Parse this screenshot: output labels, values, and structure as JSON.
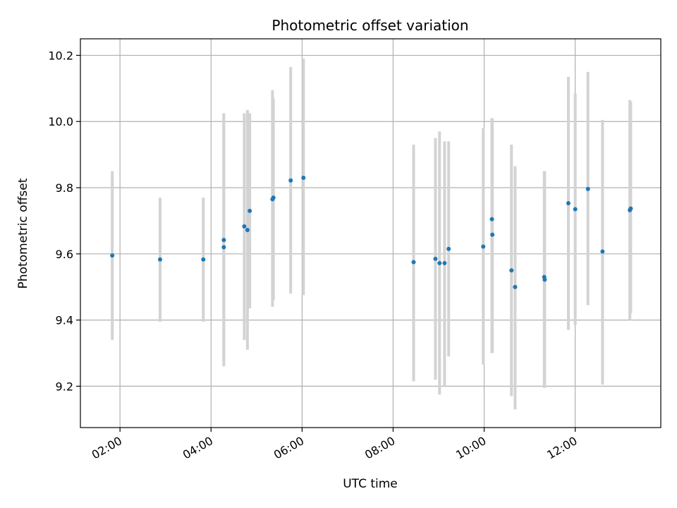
{
  "chart_data": {
    "type": "scatter",
    "title": "Photometric offset variation",
    "xlabel": "UTC time",
    "ylabel": "Photometric offset",
    "grid": true,
    "x_unit": "hours UTC",
    "xlim": [
      1.13,
      13.88
    ],
    "ylim": [
      9.075,
      10.25
    ],
    "x_ticks": [
      {
        "value": 2,
        "label": "02:00"
      },
      {
        "value": 4,
        "label": "04:00"
      },
      {
        "value": 6,
        "label": "06:00"
      },
      {
        "value": 8,
        "label": "08:00"
      },
      {
        "value": 10,
        "label": "10:00"
      },
      {
        "value": 12,
        "label": "12:00"
      }
    ],
    "y_ticks": [
      {
        "value": 9.2,
        "label": "9.2"
      },
      {
        "value": 9.4,
        "label": "9.4"
      },
      {
        "value": 9.6,
        "label": "9.6"
      },
      {
        "value": 9.8,
        "label": "9.8"
      },
      {
        "value": 10.0,
        "label": "10.0"
      },
      {
        "value": 10.2,
        "label": "10.2"
      }
    ],
    "colors": {
      "marker": "#1f77b4",
      "errorbar": "#d3d3d3",
      "grid": "#b0b0b0"
    },
    "points": [
      {
        "x": 1.83,
        "y": 9.595,
        "lo": 9.34,
        "hi": 9.85
      },
      {
        "x": 2.88,
        "y": 9.583,
        "lo": 9.395,
        "hi": 9.77
      },
      {
        "x": 3.83,
        "y": 9.583,
        "lo": 9.395,
        "hi": 9.77
      },
      {
        "x": 4.28,
        "y": 9.642,
        "lo": 9.26,
        "hi": 10.025
      },
      {
        "x": 4.28,
        "y": 9.62,
        "lo": 9.27,
        "hi": 10.0
      },
      {
        "x": 4.73,
        "y": 9.683,
        "lo": 9.34,
        "hi": 10.025
      },
      {
        "x": 4.8,
        "y": 9.672,
        "lo": 9.31,
        "hi": 10.035
      },
      {
        "x": 4.85,
        "y": 9.73,
        "lo": 9.435,
        "hi": 10.025
      },
      {
        "x": 5.35,
        "y": 9.765,
        "lo": 9.44,
        "hi": 10.095
      },
      {
        "x": 5.37,
        "y": 9.77,
        "lo": 9.46,
        "hi": 10.07
      },
      {
        "x": 5.75,
        "y": 9.822,
        "lo": 9.48,
        "hi": 10.165
      },
      {
        "x": 6.03,
        "y": 9.83,
        "lo": 9.475,
        "hi": 10.19
      },
      {
        "x": 8.45,
        "y": 9.575,
        "lo": 9.215,
        "hi": 9.93
      },
      {
        "x": 8.93,
        "y": 9.585,
        "lo": 9.22,
        "hi": 9.95
      },
      {
        "x": 9.02,
        "y": 9.572,
        "lo": 9.175,
        "hi": 9.97
      },
      {
        "x": 9.13,
        "y": 9.572,
        "lo": 9.2,
        "hi": 9.94
      },
      {
        "x": 9.22,
        "y": 9.615,
        "lo": 9.29,
        "hi": 9.94
      },
      {
        "x": 9.98,
        "y": 9.622,
        "lo": 9.265,
        "hi": 9.98
      },
      {
        "x": 10.17,
        "y": 9.705,
        "lo": 9.3,
        "hi": 10.01
      },
      {
        "x": 10.18,
        "y": 9.658,
        "lo": 9.3,
        "hi": 10.01
      },
      {
        "x": 10.6,
        "y": 9.55,
        "lo": 9.17,
        "hi": 9.93
      },
      {
        "x": 10.68,
        "y": 9.5,
        "lo": 9.13,
        "hi": 9.865
      },
      {
        "x": 11.32,
        "y": 9.53,
        "lo": 9.195,
        "hi": 9.85
      },
      {
        "x": 11.33,
        "y": 9.522,
        "lo": 9.195,
        "hi": 9.85
      },
      {
        "x": 11.85,
        "y": 9.753,
        "lo": 9.37,
        "hi": 10.135
      },
      {
        "x": 12.0,
        "y": 9.735,
        "lo": 9.385,
        "hi": 10.085
      },
      {
        "x": 12.28,
        "y": 9.796,
        "lo": 9.445,
        "hi": 10.15
      },
      {
        "x": 12.6,
        "y": 9.607,
        "lo": 9.205,
        "hi": 10.005
      },
      {
        "x": 13.2,
        "y": 9.732,
        "lo": 9.4,
        "hi": 10.065
      },
      {
        "x": 13.22,
        "y": 9.737,
        "lo": 9.42,
        "hi": 10.06
      }
    ]
  }
}
